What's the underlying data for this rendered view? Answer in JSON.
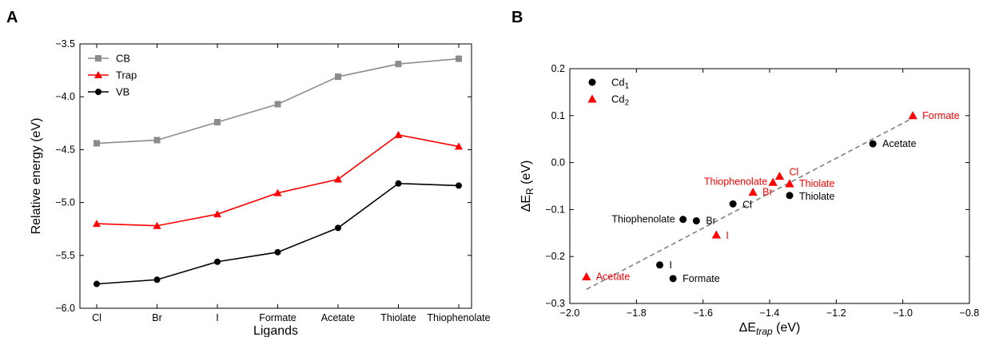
{
  "panels": [
    {
      "letter": "A",
      "chart_data": {
        "type": "line",
        "categories": [
          "Cl",
          "Br",
          "I",
          "Formate",
          "Acetate",
          "Thiolate",
          "Thiophenolate"
        ],
        "series": [
          {
            "name": "CB",
            "color": "#8c8c8c",
            "marker": "square",
            "values": [
              -4.44,
              -4.41,
              -4.24,
              -4.07,
              -3.81,
              -3.69,
              -3.64
            ]
          },
          {
            "name": "Trap",
            "color": "#ff0000",
            "marker": "triangle",
            "values": [
              -5.2,
              -5.22,
              -5.11,
              -4.91,
              -4.78,
              -4.36,
              -4.47
            ]
          },
          {
            "name": "VB",
            "color": "#000000",
            "marker": "circle",
            "values": [
              -5.77,
              -5.73,
              -5.56,
              -5.47,
              -5.24,
              -4.82,
              -4.84
            ]
          }
        ],
        "xlabel": "Ligands",
        "ylabel": "Relative energy (eV)",
        "ylim": [
          -6.0,
          -3.5
        ],
        "yticks": [
          "-6.0",
          "-5.5",
          "-5.0",
          "-4.5",
          "-4.0",
          "-3.5"
        ],
        "grid": false,
        "legend_placement": "top-left"
      }
    },
    {
      "letter": "B",
      "chart_data": {
        "type": "scatter",
        "xlabel_main": "ΔE",
        "xlabel_sub": "trap",
        "xlabel_unit": " (eV)",
        "ylabel_main": "ΔE",
        "ylabel_sub": "R",
        "ylabel_unit": " (eV)",
        "xlim": [
          -2.0,
          -0.8
        ],
        "ylim": [
          -0.3,
          0.2
        ],
        "xticks": [
          "-2.0",
          "-1.8",
          "-1.6",
          "-1.4",
          "-1.2",
          "-1.0",
          "-0.8"
        ],
        "yticks": [
          "-0.3",
          "-0.2",
          "-0.1",
          "0.0",
          "0.1",
          "0.2"
        ],
        "grid": false,
        "legend_placement": "top-left",
        "fit_line": {
          "x": [
            -1.95,
            -0.97
          ],
          "y": [
            -0.27,
            0.095
          ],
          "color": "#808080"
        },
        "series": [
          {
            "name_main": "Cd",
            "name_sub": "1",
            "color": "#000000",
            "marker": "circle",
            "points": [
              {
                "label": "Acetate",
                "x": -1.09,
                "y": 0.04
              },
              {
                "label": "Thiolate",
                "x": -1.34,
                "y": -0.07
              },
              {
                "label": "Cl",
                "x": -1.51,
                "y": -0.088
              },
              {
                "label": "Thiophenolate",
                "x": -1.66,
                "y": -0.121
              },
              {
                "label": "Br",
                "x": -1.62,
                "y": -0.124
              },
              {
                "label": "I",
                "x": -1.73,
                "y": -0.218
              },
              {
                "label": "Formate",
                "x": -1.69,
                "y": -0.247
              }
            ]
          },
          {
            "name_main": "Cd",
            "name_sub": "2",
            "color": "#ff0000",
            "marker": "triangle",
            "points": [
              {
                "label": "Formate",
                "x": -0.97,
                "y": 0.1
              },
              {
                "label": "Cl",
                "x": -1.37,
                "y": -0.029
              },
              {
                "label": "Thiophenolate",
                "x": -1.39,
                "y": -0.042
              },
              {
                "label": "Thiolate",
                "x": -1.34,
                "y": -0.045
              },
              {
                "label": "Br",
                "x": -1.45,
                "y": -0.063
              },
              {
                "label": "I",
                "x": -1.56,
                "y": -0.154
              },
              {
                "label": "Acetate",
                "x": -1.95,
                "y": -0.243
              }
            ]
          }
        ]
      }
    }
  ]
}
